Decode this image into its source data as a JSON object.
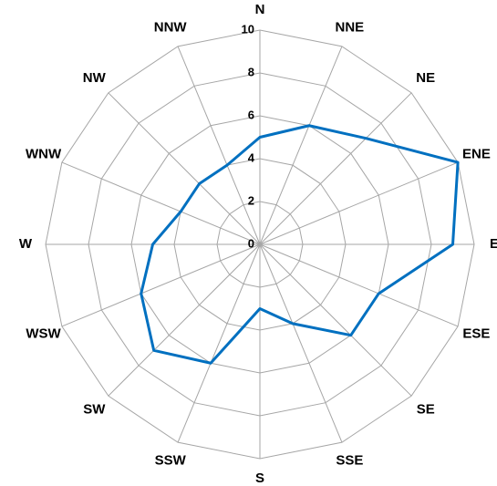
{
  "chart_data": {
    "type": "radar",
    "categories": [
      "N",
      "NNE",
      "NE",
      "ENE",
      "E",
      "ESE",
      "SE",
      "SSE",
      "S",
      "SSW",
      "SW",
      "WSW",
      "W",
      "WNW",
      "NW",
      "NNW"
    ],
    "values": [
      5,
      6,
      7,
      10,
      9,
      6,
      6,
      4,
      3,
      6,
      7,
      6,
      5,
      4,
      4,
      4
    ],
    "color": "#0070c0",
    "rlim": [
      0,
      10
    ],
    "rticks": [
      0,
      2,
      4,
      6,
      8,
      10
    ],
    "grid": true
  }
}
